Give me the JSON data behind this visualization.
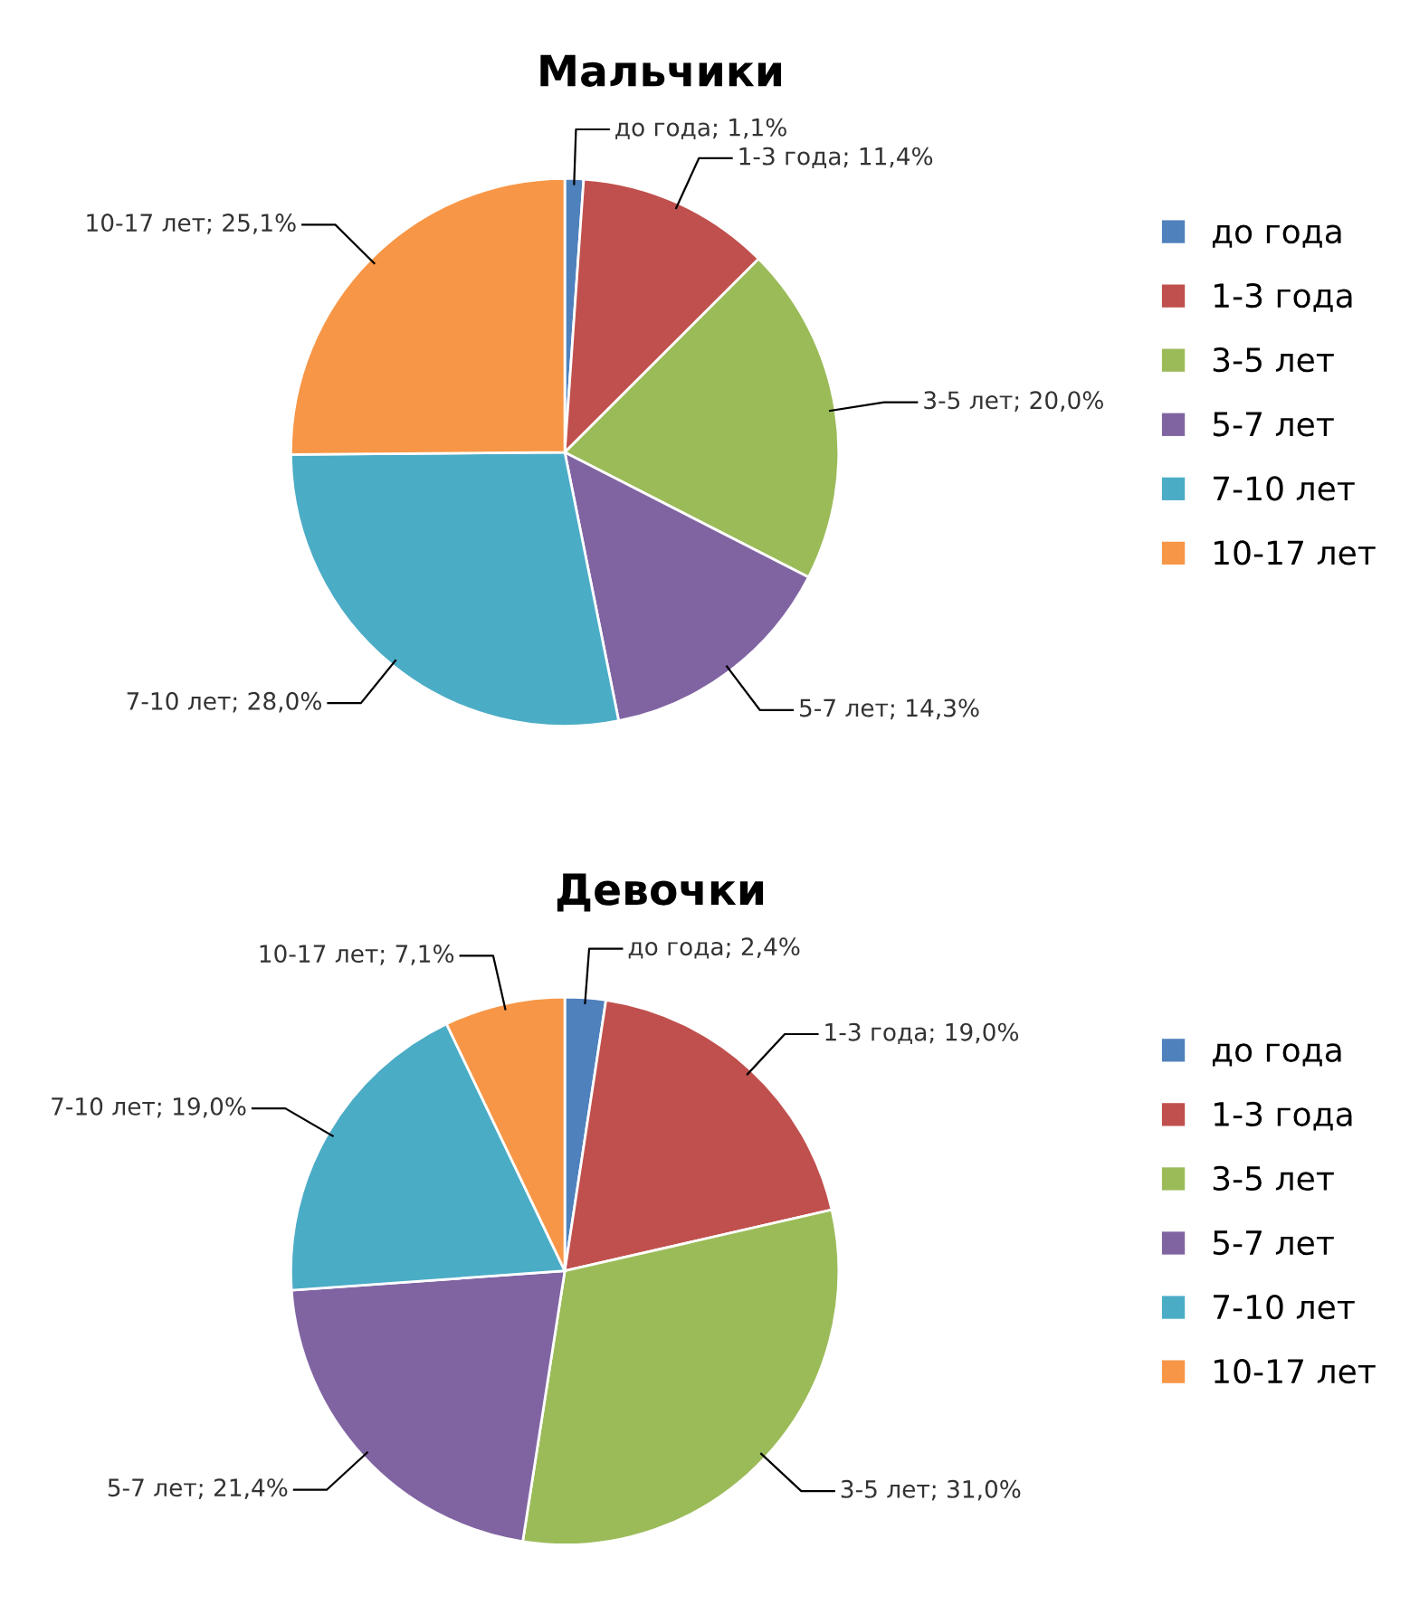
{
  "chart_data": [
    {
      "type": "pie",
      "title": "Мальчики",
      "categories": [
        "до года",
        "1-3 года",
        "3-5 лет",
        "5-7 лет",
        "7-10 лет",
        "10-17 лет"
      ],
      "values": [
        1.1,
        11.4,
        20.0,
        14.3,
        28.0,
        25.1
      ],
      "colors": [
        "#4f81bd",
        "#c0504d",
        "#9bbb59",
        "#8064a2",
        "#4bacc6",
        "#f79646"
      ],
      "value_labels": [
        "до года; 1,1%",
        "1-3 года; 11,4%",
        "3-5 лет; 20,0%",
        "5-7 лет; 14,3%",
        "7-10 лет; 28,0%",
        "10-17 лет; 25,1%"
      ],
      "legend": "right"
    },
    {
      "type": "pie",
      "title": "Девочки",
      "categories": [
        "до года",
        "1-3 года",
        "3-5 лет",
        "5-7 лет",
        "7-10 лет",
        "10-17 лет"
      ],
      "values": [
        2.4,
        19.0,
        31.0,
        21.4,
        19.0,
        7.1
      ],
      "colors": [
        "#4f81bd",
        "#c0504d",
        "#9bbb59",
        "#8064a2",
        "#4bacc6",
        "#f79646"
      ],
      "value_labels": [
        "до года; 2,4%",
        "1-3 года; 19,0%",
        "3-5 лет; 31,0%",
        "5-7 лет; 21,4%",
        "7-10 лет; 19,0%",
        "10-17 лет; 7,1%"
      ],
      "legend": "right"
    }
  ]
}
